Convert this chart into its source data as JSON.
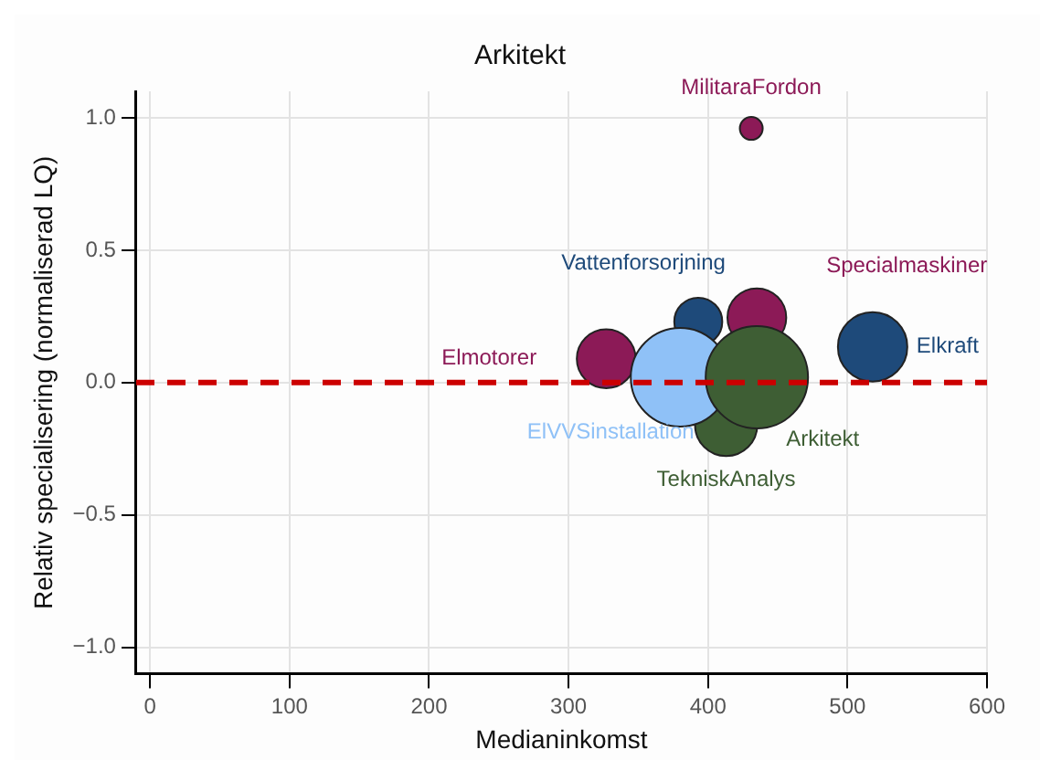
{
  "chart_data": {
    "type": "bubble",
    "title": "Arkitekt",
    "xlabel": "Medianinkomst",
    "ylabel": "Relativ specialisering (normaliserad LQ)",
    "xlim": [
      -10,
      600
    ],
    "xticks": [
      0,
      100,
      200,
      300,
      400,
      500,
      600
    ],
    "ylim": [
      -1.1,
      1.1
    ],
    "yticks": [
      {
        "value": -1,
        "label": "−1.0"
      },
      {
        "value": -0.5,
        "label": "−0.5"
      },
      {
        "value": 0,
        "label": "0.0"
      },
      {
        "value": 0.5,
        "label": "0.5"
      },
      {
        "value": 1,
        "label": "1.0"
      }
    ],
    "grid": true,
    "legend": false,
    "ref_lines": [
      {
        "axis": "y",
        "value": 0,
        "color": "#cc0000",
        "line_style": "dashed"
      }
    ],
    "series": [
      {
        "name": "MilitaraFordon",
        "color": "#8c1a57",
        "x": [
          431
        ],
        "values": [
          0.96
        ],
        "sizes": [
          0.05
        ]
      },
      {
        "name": "Vattenforsorjning",
        "color": "#1e4a7a",
        "x": [
          393
        ],
        "values": [
          0.23
        ],
        "sizes": [
          0.22
        ]
      },
      {
        "name": "Specialmaskiner",
        "color": "#8c1a57",
        "x": [
          435
        ],
        "values": [
          0.245
        ],
        "sizes": [
          0.33
        ]
      },
      {
        "name": "Elmotorer",
        "color": "#8c1a57",
        "x": [
          327
        ],
        "values": [
          0.09
        ],
        "sizes": [
          0.33
        ]
      },
      {
        "name": "TekniskAnalys",
        "color": "#3e5e34",
        "x": [
          413
        ],
        "values": [
          -0.16
        ],
        "sizes": [
          0.37
        ]
      },
      {
        "name": "Elkraft",
        "color": "#1e4a7a",
        "x": [
          518
        ],
        "values": [
          0.135
        ],
        "sizes": [
          0.46
        ]
      },
      {
        "name": "ElVVSinstallation",
        "color": "#8fc1f7",
        "x": [
          380
        ],
        "values": [
          0.02
        ],
        "sizes": [
          0.93
        ]
      },
      {
        "name": "Arkitekt",
        "color": "#3e5e34",
        "x": [
          435
        ],
        "values": [
          0.02
        ],
        "sizes": [
          1
        ]
      }
    ]
  }
}
